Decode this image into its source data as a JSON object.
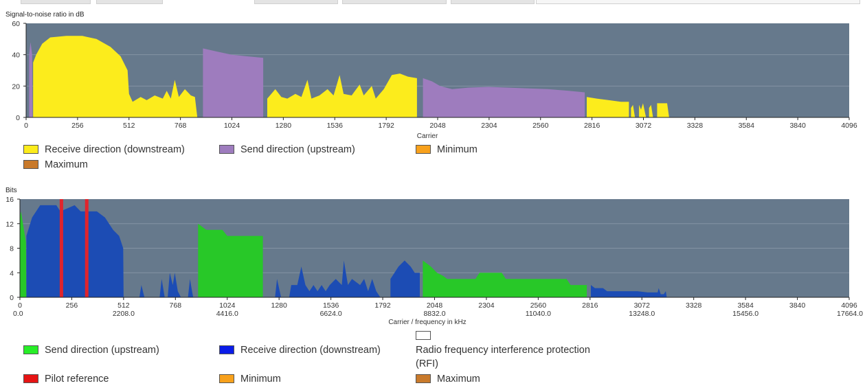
{
  "tabs": [
    "",
    "",
    "",
    "",
    "",
    "",
    ""
  ],
  "snr_chart": {
    "ylabel": "Signal-to-noise ratio in dB",
    "xlabel": "Carrier",
    "colors": {
      "plot_bg": "#66798c",
      "downstream": "#fcec1c",
      "upstream": "#9e7cbe"
    },
    "legend": [
      {
        "label": "Receive direction (downstream)",
        "color": "#fcec1c"
      },
      {
        "label": "Send direction (upstream)",
        "color": "#9e7cbe"
      },
      {
        "label": "Minimum",
        "color": "#f8a11c"
      },
      {
        "label": "Maximum",
        "color": "#c97a2b"
      }
    ]
  },
  "bits_chart": {
    "ylabel": "Bits",
    "xlabel": "Carrier / frequency in kHz",
    "colors": {
      "plot_bg": "#66798c",
      "upstream": "#28c828",
      "downstream": "#1c4cb4",
      "pilot": "#e0242c"
    },
    "legend": [
      {
        "label": "Send direction (upstream)",
        "color": "#28ee28"
      },
      {
        "label": "Receive direction (downstream)",
        "color": "#0a1ce8"
      },
      {
        "label": "Radio frequency interference protection (RFI)",
        "color": "#ffffff"
      },
      {
        "label": "Pilot reference",
        "color": "#e61414"
      },
      {
        "label": "Minimum",
        "color": "#f8a11c"
      },
      {
        "label": "Maximum",
        "color": "#c97a2b"
      }
    ]
  },
  "chart_data": [
    {
      "type": "area",
      "ylabel": "Signal-to-noise ratio in dB",
      "xlabel": "Carrier",
      "xlim": [
        0,
        4096
      ],
      "ylim": [
        0,
        60
      ],
      "x_ticks": [
        "0",
        "256",
        "512",
        "768",
        "1024",
        "1280",
        "1536",
        "1792",
        "2048",
        "2304",
        "2560",
        "2816",
        "3072",
        "3328",
        "3584",
        "3840",
        "4096"
      ],
      "y_ticks": [
        "0",
        "20",
        "40",
        "60"
      ],
      "grid": true,
      "series": [
        {
          "name": "Send direction (upstream)",
          "segments": [
            [
              [
                15,
                0
              ],
              [
                15,
                40
              ],
              [
                22,
                48
              ],
              [
                30,
                40
              ],
              [
                32,
                0
              ]
            ],
            [
              [
                880,
                0
              ],
              [
                880,
                44
              ],
              [
                950,
                42
              ],
              [
                1024,
                40
              ],
              [
                1100,
                39
              ],
              [
                1180,
                38
              ],
              [
                1180,
                0
              ]
            ],
            [
              [
                1975,
                0
              ],
              [
                1975,
                25
              ],
              [
                2020,
                23
              ],
              [
                2060,
                20
              ],
              [
                2120,
                18
              ],
              [
                2200,
                19
              ],
              [
                2300,
                19.5
              ],
              [
                2400,
                19
              ],
              [
                2500,
                18.5
              ],
              [
                2600,
                18
              ],
              [
                2700,
                17
              ],
              [
                2780,
                16
              ],
              [
                2780,
                0
              ]
            ]
          ]
        },
        {
          "name": "Receive direction (downstream)",
          "segments": [
            [
              [
                35,
                0
              ],
              [
                35,
                35
              ],
              [
                50,
                40
              ],
              [
                80,
                47
              ],
              [
                120,
                51
              ],
              [
                200,
                52
              ],
              [
                280,
                52
              ],
              [
                350,
                50
              ],
              [
                420,
                45
              ],
              [
                470,
                39
              ],
              [
                505,
                30
              ],
              [
                512,
                15
              ],
              [
                530,
                10
              ],
              [
                570,
                13
              ],
              [
                600,
                11
              ],
              [
                640,
                14
              ],
              [
                680,
                12
              ],
              [
                700,
                17
              ],
              [
                720,
                12
              ],
              [
                740,
                24
              ],
              [
                760,
                13
              ],
              [
                790,
                18
              ],
              [
                820,
                14
              ],
              [
                840,
                13
              ],
              [
                852,
                0
              ]
            ],
            [
              [
                1200,
                0
              ],
              [
                1200,
                12
              ],
              [
                1240,
                18
              ],
              [
                1270,
                13
              ],
              [
                1300,
                12
              ],
              [
                1340,
                15
              ],
              [
                1370,
                13
              ],
              [
                1400,
                24
              ],
              [
                1420,
                12
              ],
              [
                1460,
                14
              ],
              [
                1500,
                18
              ],
              [
                1530,
                14
              ],
              [
                1560,
                27
              ],
              [
                1580,
                15
              ],
              [
                1620,
                14
              ],
              [
                1660,
                21
              ],
              [
                1680,
                14
              ],
              [
                1720,
                20
              ],
              [
                1740,
                12
              ],
              [
                1780,
                18
              ],
              [
                1820,
                27
              ],
              [
                1860,
                28
              ],
              [
                1900,
                26
              ],
              [
                1945,
                25
              ],
              [
                1945,
                0
              ]
            ],
            [
              [
                2790,
                0
              ],
              [
                2790,
                13
              ],
              [
                2840,
                12
              ],
              [
                2900,
                11
              ],
              [
                2960,
                10
              ],
              [
                3000,
                10
              ],
              [
                3000,
                0
              ]
            ],
            [
              [
                3010,
                0
              ],
              [
                3010,
                6
              ],
              [
                3020,
                8
              ],
              [
                3030,
                0
              ]
            ],
            [
              [
                3050,
                0
              ],
              [
                3050,
                8
              ],
              [
                3060,
                5
              ],
              [
                3070,
                9
              ],
              [
                3085,
                0
              ]
            ],
            [
              [
                3100,
                0
              ],
              [
                3100,
                6
              ],
              [
                3110,
                8
              ],
              [
                3120,
                0
              ]
            ],
            [
              [
                3140,
                0
              ],
              [
                3140,
                9
              ],
              [
                3190,
                9
              ],
              [
                3200,
                0
              ]
            ]
          ]
        }
      ]
    },
    {
      "type": "area",
      "ylabel": "Bits",
      "xlabel": "Carrier / frequency in kHz",
      "xlim": [
        0,
        4096
      ],
      "ylim": [
        0,
        16
      ],
      "x_ticks": [
        "0",
        "256",
        "512",
        "768",
        "1024",
        "1280",
        "1536",
        "1792",
        "2048",
        "2304",
        "2560",
        "2816",
        "3072",
        "3328",
        "3584",
        "3840",
        "4096"
      ],
      "x_freq_ticks": [
        "0.0",
        "2208.0",
        "4416.0",
        "6624.0",
        "8832.0",
        "11040.0",
        "13248.0",
        "15456.0",
        "17664.0"
      ],
      "y_ticks": [
        "0",
        "4",
        "8",
        "12",
        "16"
      ],
      "grid": true,
      "series": [
        {
          "name": "Send direction (upstream)",
          "segments": [
            [
              [
                0,
                0
              ],
              [
                0,
                13
              ],
              [
                5,
                14
              ],
              [
                15,
                12
              ],
              [
                30,
                9
              ],
              [
                32,
                0
              ]
            ],
            [
              [
                880,
                0
              ],
              [
                880,
                12
              ],
              [
                920,
                11
              ],
              [
                1000,
                11
              ],
              [
                1024,
                10
              ],
              [
                1100,
                10
              ],
              [
                1200,
                10
              ],
              [
                1200,
                0
              ]
            ],
            [
              [
                1990,
                0
              ],
              [
                1990,
                6
              ],
              [
                2030,
                5
              ],
              [
                2060,
                4
              ],
              [
                2090,
                3.5
              ],
              [
                2110,
                3
              ],
              [
                2200,
                3
              ],
              [
                2250,
                3
              ],
              [
                2270,
                4
              ],
              [
                2380,
                4
              ],
              [
                2400,
                3
              ],
              [
                2600,
                3
              ],
              [
                2700,
                3
              ],
              [
                2720,
                2
              ],
              [
                2800,
                2
              ],
              [
                2800,
                0
              ]
            ]
          ]
        },
        {
          "name": "Receive direction (downstream)",
          "segments": [
            [
              [
                32,
                0
              ],
              [
                32,
                10
              ],
              [
                60,
                13
              ],
              [
                100,
                15
              ],
              [
                180,
                15
              ],
              [
                200,
                14
              ],
              [
                270,
                15
              ],
              [
                300,
                14
              ],
              [
                380,
                14
              ],
              [
                420,
                13
              ],
              [
                460,
                11
              ],
              [
                490,
                10
              ],
              [
                510,
                8
              ],
              [
                512,
                0
              ]
            ],
            [
              [
                590,
                0
              ],
              [
                600,
                2
              ],
              [
                615,
                0
              ]
            ],
            [
              [
                690,
                0
              ],
              [
                700,
                3
              ],
              [
                715,
                0
              ]
            ],
            [
              [
                730,
                0
              ],
              [
                740,
                4
              ],
              [
                755,
                2
              ],
              [
                765,
                4
              ],
              [
                780,
                1
              ],
              [
                795,
                0
              ]
            ],
            [
              [
                830,
                0
              ],
              [
                840,
                3
              ],
              [
                850,
                1
              ],
              [
                856,
                0
              ]
            ],
            [
              [
                1260,
                0
              ],
              [
                1270,
                3
              ],
              [
                1290,
                0
              ]
            ],
            [
              [
                1330,
                0
              ],
              [
                1340,
                2
              ],
              [
                1370,
                2
              ],
              [
                1390,
                5
              ],
              [
                1410,
                2
              ],
              [
                1430,
                1
              ],
              [
                1450,
                2
              ],
              [
                1470,
                1
              ],
              [
                1490,
                2
              ],
              [
                1510,
                1
              ],
              [
                1530,
                2
              ],
              [
                1560,
                3
              ],
              [
                1590,
                2
              ],
              [
                1600,
                6
              ],
              [
                1620,
                2
              ],
              [
                1640,
                3
              ],
              [
                1680,
                2
              ],
              [
                1700,
                3
              ],
              [
                1720,
                1
              ],
              [
                1740,
                3
              ],
              [
                1760,
                1
              ],
              [
                1780,
                0
              ]
            ],
            [
              [
                1830,
                0
              ],
              [
                1830,
                3
              ],
              [
                1850,
                4
              ],
              [
                1870,
                5
              ],
              [
                1900,
                6
              ],
              [
                1930,
                5
              ],
              [
                1950,
                4
              ],
              [
                1975,
                4
              ],
              [
                1975,
                0
              ]
            ],
            [
              [
                2820,
                0
              ],
              [
                2820,
                2
              ],
              [
                2840,
                1.5
              ],
              [
                2880,
                1.5
              ],
              [
                2900,
                1
              ],
              [
                3000,
                1
              ],
              [
                3050,
                1
              ],
              [
                3100,
                0.8
              ],
              [
                3150,
                0.8
              ],
              [
                3155,
                1.5
              ],
              [
                3165,
                0.5
              ],
              [
                3180,
                0.5
              ],
              [
                3190,
                1
              ],
              [
                3195,
                0
              ]
            ]
          ]
        },
        {
          "name": "Pilot reference",
          "lines": [
            205,
            330
          ]
        }
      ]
    }
  ]
}
